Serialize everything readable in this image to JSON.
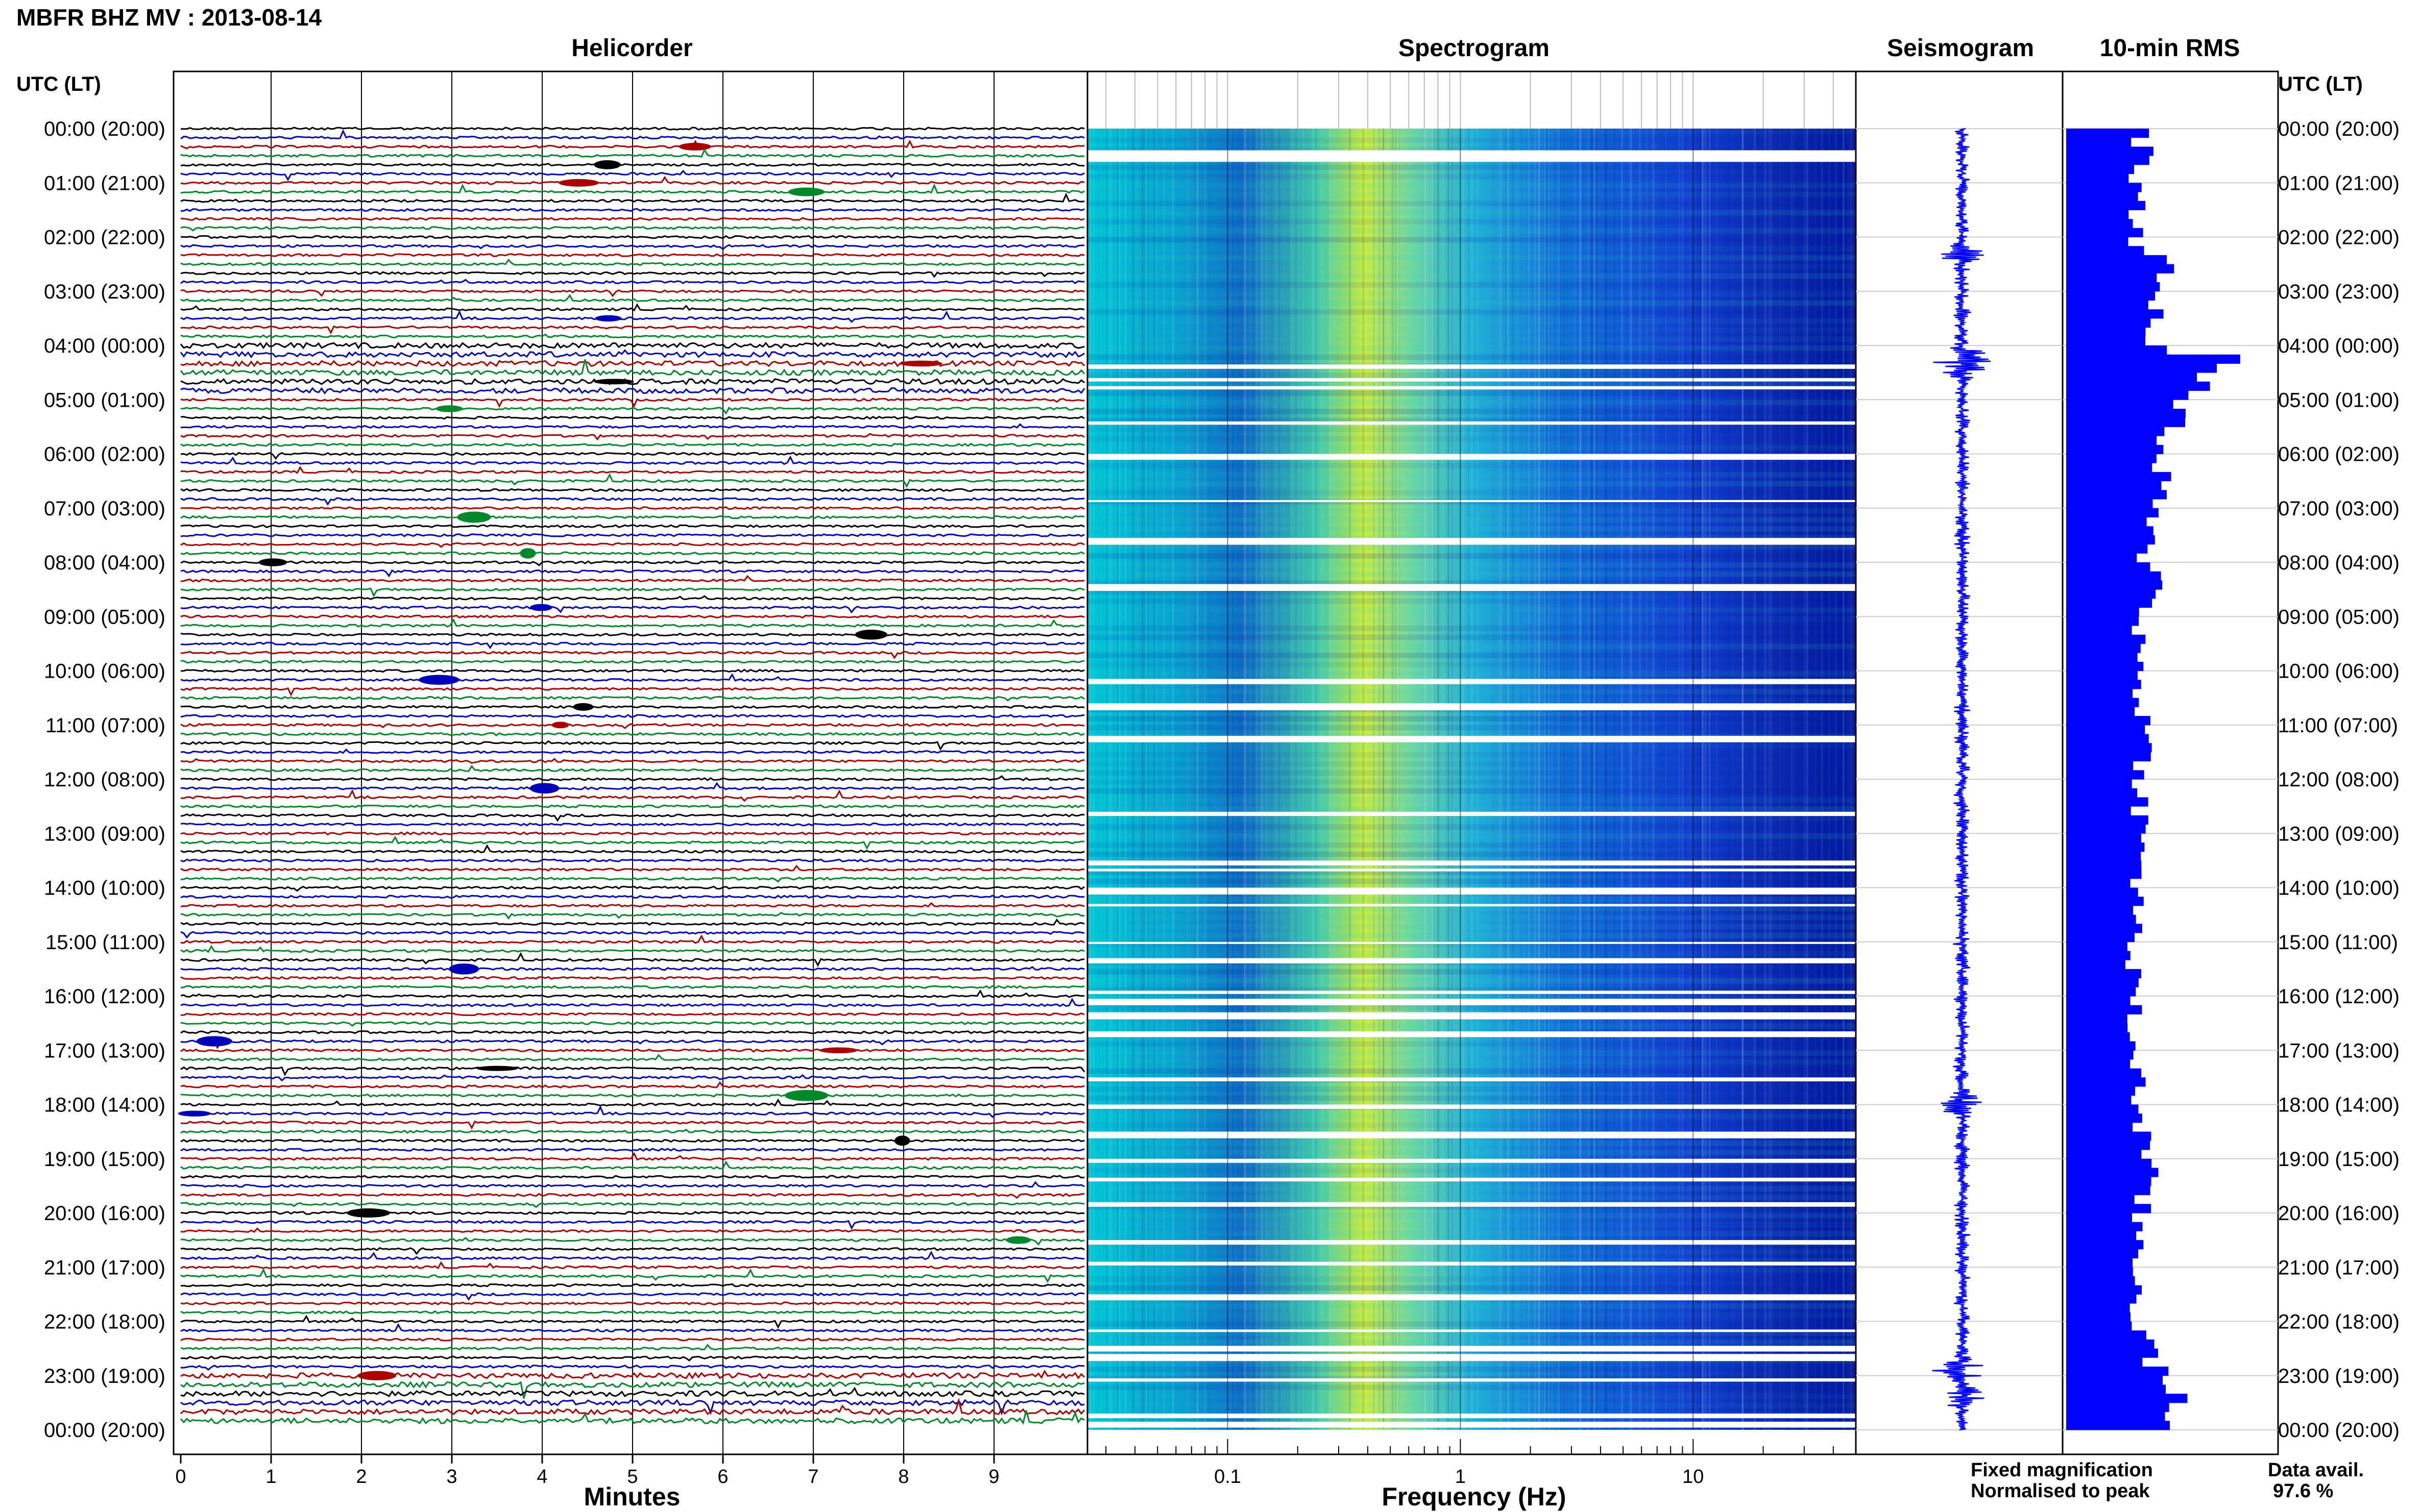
{
  "title": "MBFR BHZ MV : 2013-08-14",
  "time_axis_label": "UTC (LT)",
  "panels": {
    "helicorder": "Helicorder",
    "spectrogram": "Spectrogram",
    "seismogram": "Seismogram",
    "rms": "10-min RMS"
  },
  "legend": {
    "fixed": "Fixed magnification",
    "fixed_color": "#0000ff",
    "normalised": "Normalised to peak",
    "normalised_color": "#ff0000"
  },
  "availability": {
    "label": "Data avail.",
    "value": "97.6 %"
  },
  "colors": {
    "trace_cycle": [
      "#000000",
      "#0000bb",
      "#aa0000",
      "#00882a"
    ],
    "spectrogram_low": "#0018a0",
    "spectrogram_high": "#d8f020",
    "seismogram": "#0000ff",
    "rms": "#0000ff"
  },
  "chart_data": [
    {
      "type": "line",
      "name": "Helicorder",
      "xlabel": "Minutes",
      "x_ticks": [
        0,
        1,
        2,
        3,
        4,
        5,
        6,
        7,
        8,
        9
      ],
      "xlim": [
        0,
        10
      ],
      "time_labels": [
        "00:00 (20:00)",
        "01:00 (21:00)",
        "02:00 (22:00)",
        "03:00 (23:00)",
        "04:00 (00:00)",
        "05:00 (01:00)",
        "06:00 (02:00)",
        "07:00 (03:00)",
        "08:00 (04:00)",
        "09:00 (05:00)",
        "10:00 (06:00)",
        "11:00 (07:00)",
        "12:00 (08:00)",
        "13:00 (09:00)",
        "14:00 (10:00)",
        "15:00 (11:00)",
        "16:00 (12:00)",
        "17:00 (13:00)",
        "18:00 (14:00)",
        "19:00 (15:00)",
        "20:00 (16:00)",
        "21:00 (17:00)",
        "22:00 (18:00)",
        "23:00 (19:00)",
        "00:00 (20:00)"
      ],
      "rows": 144,
      "rows_per_hour": 6
    },
    {
      "type": "heatmap",
      "name": "Spectrogram",
      "xlabel": "Frequency (Hz)",
      "x_scale": "log",
      "x_ticks": [
        0.1,
        1,
        10
      ],
      "xlim": [
        0.025,
        50
      ],
      "peak_frequency_hz": 0.3
    },
    {
      "type": "line",
      "name": "Seismogram",
      "events_utc_hours": [
        2.3,
        4.2,
        4.4,
        18.0,
        22.9,
        23.4
      ]
    },
    {
      "type": "bar",
      "name": "10-min RMS",
      "hours": [
        0,
        0.5,
        1,
        1.5,
        2,
        2.5,
        3,
        3.5,
        4,
        4.25,
        4.5,
        5,
        5.5,
        6,
        6.5,
        7,
        7.5,
        8,
        8.5,
        9,
        10,
        11,
        12,
        13,
        14,
        15,
        16,
        17,
        18,
        19,
        20,
        21,
        22,
        23,
        23.5,
        24
      ],
      "values": [
        0.55,
        0.6,
        0.5,
        0.55,
        0.52,
        0.75,
        0.7,
        0.65,
        0.7,
        1.4,
        1.1,
        0.85,
        0.75,
        0.7,
        0.72,
        0.62,
        0.6,
        0.62,
        0.75,
        0.55,
        0.55,
        0.6,
        0.58,
        0.55,
        0.55,
        0.5,
        0.5,
        0.52,
        0.55,
        0.62,
        0.55,
        0.55,
        0.55,
        0.7,
        0.9,
        0.8
      ],
      "xlim": [
        0,
        1.6
      ]
    }
  ]
}
